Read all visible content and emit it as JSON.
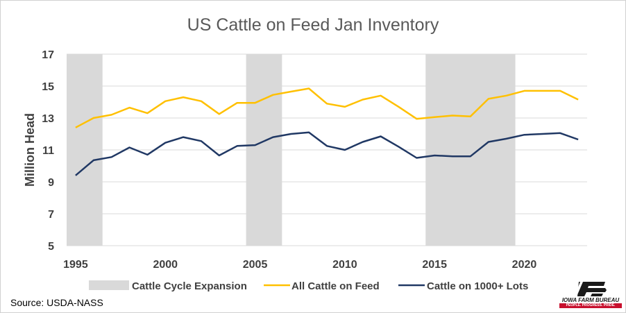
{
  "chart_data": {
    "type": "line",
    "title": "US Cattle on Feed Jan Inventory",
    "xlabel": "",
    "ylabel": "Million Head",
    "xlim": [
      1994.5,
      2023.5
    ],
    "ylim": [
      5,
      17
    ],
    "yticks": [
      5,
      7,
      9,
      11,
      13,
      15,
      17
    ],
    "xticks": [
      1995,
      2000,
      2005,
      2010,
      2015,
      2020
    ],
    "grid": true,
    "legend_position": "bottom",
    "shaded_regions": {
      "name": "Cattle Cycle Expansion",
      "color": "#d9d9d9",
      "ranges": [
        [
          1994.5,
          1996.5
        ],
        [
          2004.5,
          2006.5
        ],
        [
          2014.5,
          2019.5
        ]
      ]
    },
    "x": [
      1995,
      1996,
      1997,
      1998,
      1999,
      2000,
      2001,
      2002,
      2003,
      2004,
      2005,
      2006,
      2007,
      2008,
      2009,
      2010,
      2011,
      2012,
      2013,
      2014,
      2015,
      2016,
      2017,
      2018,
      2019,
      2020,
      2021,
      2022,
      2023
    ],
    "series": [
      {
        "name": "All Cattle on Feed",
        "color": "#ffc000",
        "values": [
          12.4,
          13.0,
          13.2,
          13.65,
          13.3,
          14.05,
          14.3,
          14.05,
          13.25,
          13.95,
          13.95,
          14.45,
          14.65,
          14.85,
          13.9,
          13.7,
          14.15,
          14.4,
          13.7,
          12.95,
          13.05,
          13.15,
          13.1,
          14.2,
          14.4,
          14.7,
          14.7,
          14.7,
          14.15
        ]
      },
      {
        "name": "Cattle on 1000+ Lots",
        "color": "#203864",
        "values": [
          9.4,
          10.35,
          10.55,
          11.15,
          10.7,
          11.45,
          11.8,
          11.55,
          10.65,
          11.25,
          11.3,
          11.8,
          12.0,
          12.1,
          11.25,
          11.0,
          11.5,
          11.85,
          11.2,
          10.5,
          10.65,
          10.6,
          10.6,
          11.5,
          11.7,
          11.95,
          12.0,
          12.05,
          11.65
        ]
      }
    ]
  },
  "source": "Source: USDA-NASS",
  "logo": {
    "name": "IOWA FARM BUREAU",
    "tagline": "PEOPLE. PROGRESS. PRIDE.",
    "color": "#c8102e"
  }
}
